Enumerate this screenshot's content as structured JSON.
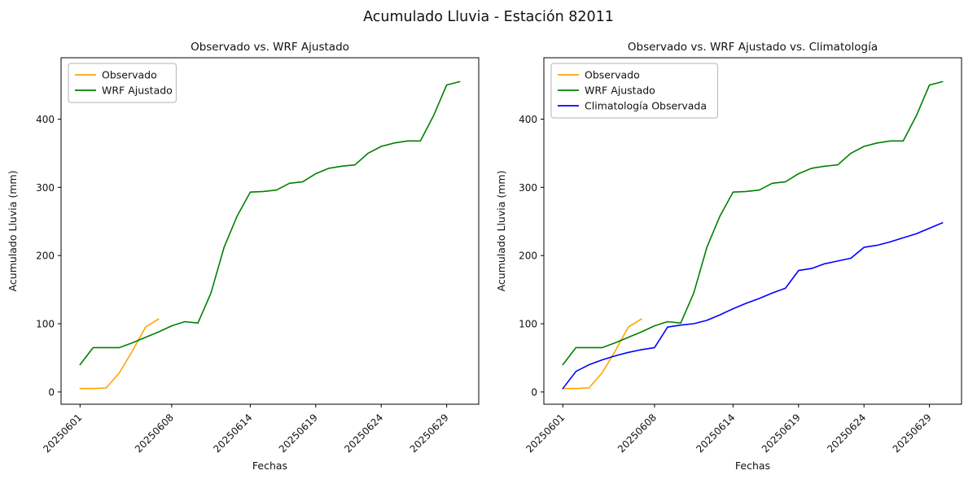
{
  "title": "Acumulado Lluvia - Estación 82011",
  "chart_data": [
    {
      "type": "line",
      "title": "Observado vs. WRF Ajustado",
      "xlabel": "Fechas",
      "ylabel": "Acumulado Lluvia (mm)",
      "ylim": [
        -18,
        490
      ],
      "yticks": [
        0,
        100,
        200,
        300,
        400
      ],
      "grid": false,
      "legend_position": "upper-left",
      "x_dates": [
        "20250601",
        "20250602",
        "20250603",
        "20250604",
        "20250605",
        "20250606",
        "20250607",
        "20250608",
        "20250609",
        "20250610",
        "20250611",
        "20250612",
        "20250613",
        "20250614",
        "20250615",
        "20250616",
        "20250617",
        "20250618",
        "20250619",
        "20250620",
        "20250621",
        "20250622",
        "20250623",
        "20250624",
        "20250625",
        "20250626",
        "20250627",
        "20250628",
        "20250629",
        "20250630"
      ],
      "xtick_indices": [
        0,
        7,
        13,
        18,
        23,
        28
      ],
      "series": [
        {
          "name": "Observado",
          "color": "#FFA500",
          "values": [
            5,
            5,
            6,
            28,
            60,
            95,
            107
          ]
        },
        {
          "name": "WRF Ajustado",
          "color": "#008000",
          "values": [
            40,
            65,
            65,
            65,
            72,
            80,
            88,
            97,
            103,
            101,
            145,
            212,
            258,
            293,
            294,
            296,
            306,
            308,
            320,
            328,
            331,
            333,
            350,
            360,
            365,
            368,
            368,
            405,
            450,
            455
          ]
        }
      ]
    },
    {
      "type": "line",
      "title": "Observado vs. WRF Ajustado vs. Climatología",
      "xlabel": "Fechas",
      "ylabel": "Acumulado Lluvia (mm)",
      "ylim": [
        -18,
        490
      ],
      "yticks": [
        0,
        100,
        200,
        300,
        400
      ],
      "grid": false,
      "legend_position": "upper-left",
      "x_dates": [
        "20250601",
        "20250602",
        "20250603",
        "20250604",
        "20250605",
        "20250606",
        "20250607",
        "20250608",
        "20250609",
        "20250610",
        "20250611",
        "20250612",
        "20250613",
        "20250614",
        "20250615",
        "20250616",
        "20250617",
        "20250618",
        "20250619",
        "20250620",
        "20250621",
        "20250622",
        "20250623",
        "20250624",
        "20250625",
        "20250626",
        "20250627",
        "20250628",
        "20250629",
        "20250630"
      ],
      "xtick_indices": [
        0,
        7,
        13,
        18,
        23,
        28
      ],
      "series": [
        {
          "name": "Observado",
          "color": "#FFA500",
          "values": [
            5,
            5,
            6,
            28,
            60,
            95,
            107
          ]
        },
        {
          "name": "WRF Ajustado",
          "color": "#008000",
          "values": [
            40,
            65,
            65,
            65,
            72,
            80,
            88,
            97,
            103,
            101,
            145,
            212,
            258,
            293,
            294,
            296,
            306,
            308,
            320,
            328,
            331,
            333,
            350,
            360,
            365,
            368,
            368,
            405,
            450,
            455
          ]
        },
        {
          "name": "Climatología Observada",
          "color": "#0000FF",
          "values": [
            5,
            30,
            40,
            47,
            53,
            58,
            62,
            65,
            95,
            98,
            100,
            105,
            113,
            122,
            130,
            137,
            145,
            152,
            178,
            181,
            188,
            192,
            196,
            212,
            215,
            220,
            226,
            232,
            240,
            248
          ]
        }
      ]
    }
  ]
}
